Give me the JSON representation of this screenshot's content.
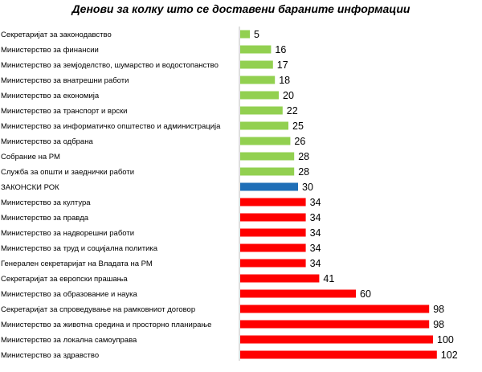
{
  "chart_data": {
    "type": "bar",
    "orientation": "horizontal",
    "title": "Денови за колку што се доставени бараните информации",
    "xlabel": "",
    "ylabel": "",
    "xlim": [
      0,
      110
    ],
    "grid": false,
    "legend": "none",
    "colors": {
      "below_deadline": "#92d050",
      "deadline": "#1f6fb7",
      "above_deadline": "#ff0000"
    },
    "categories": [
      "Секретаријат за законодавство",
      "Министерство за финансии",
      "Министерство за земјоделство, шумарство и водостопанство",
      "Министерство за внатрешни работи",
      "Министерство за економија",
      "Министерство за транспорт и врски",
      "Министерство за информатичко општество и администрација",
      "Министерство за одбрана",
      "Собрание на РМ",
      "Служба за општи и заеднички работи",
      "ЗАКОНСКИ РОК",
      "Министерство за култура",
      "Министерство за правда",
      "Министерство за надворешни работи",
      "Министерство за труд и социјална политика",
      "Генерален секретаријат на Владата на РМ",
      "Секретаријат за европски прашања",
      "Министерство за образование и наука",
      "Секретаријат за спроведување на рамковниот договор",
      "Министерство за животна средина и просторно планирање",
      "Министерство за локална самоуправа",
      "Министерство за здравство"
    ],
    "values": [
      5,
      16,
      17,
      18,
      20,
      22,
      25,
      26,
      28,
      28,
      30,
      34,
      34,
      34,
      34,
      34,
      41,
      60,
      98,
      98,
      100,
      102
    ],
    "deadline_value": 30
  }
}
